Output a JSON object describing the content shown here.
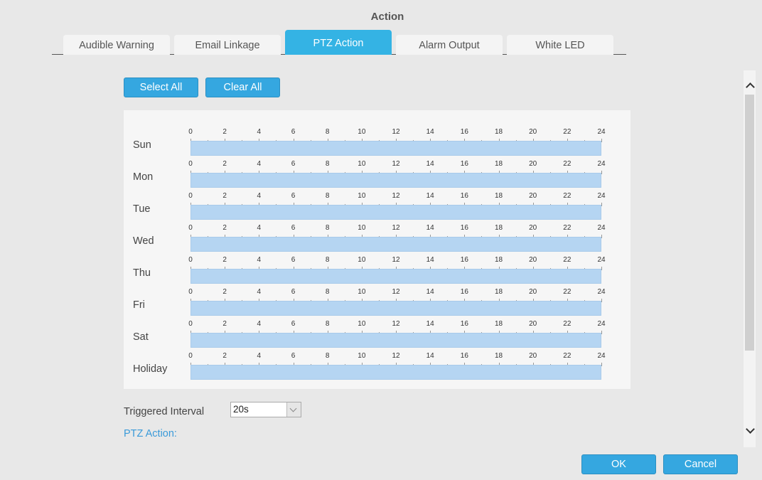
{
  "dialog": {
    "title": "Action"
  },
  "tabs": [
    {
      "label": "Audible Warning",
      "active": false
    },
    {
      "label": "Email Linkage",
      "active": false
    },
    {
      "label": "PTZ Action",
      "active": true
    },
    {
      "label": "Alarm Output",
      "active": false
    },
    {
      "label": "White LED",
      "active": false
    }
  ],
  "toolbar": {
    "select_all_label": "Select All",
    "clear_all_label": "Clear All"
  },
  "schedule": {
    "tick_labels": [
      "0",
      "2",
      "4",
      "6",
      "8",
      "10",
      "12",
      "14",
      "16",
      "18",
      "20",
      "22",
      "24"
    ],
    "hours_total": 24,
    "days": [
      {
        "label": "Sun",
        "selected_start": 0,
        "selected_end": 24
      },
      {
        "label": "Mon",
        "selected_start": 0,
        "selected_end": 24
      },
      {
        "label": "Tue",
        "selected_start": 0,
        "selected_end": 24
      },
      {
        "label": "Wed",
        "selected_start": 0,
        "selected_end": 24
      },
      {
        "label": "Thu",
        "selected_start": 0,
        "selected_end": 24
      },
      {
        "label": "Fri",
        "selected_start": 0,
        "selected_end": 24
      },
      {
        "label": "Sat",
        "selected_start": 0,
        "selected_end": 24
      },
      {
        "label": "Holiday",
        "selected_start": 0,
        "selected_end": 24
      }
    ],
    "bar_color": "#b5d5f2"
  },
  "interval": {
    "label": "Triggered Interval",
    "value": "20s"
  },
  "ptz_action": {
    "label": "PTZ Action:"
  },
  "footer": {
    "ok_label": "OK",
    "cancel_label": "Cancel"
  },
  "colors": {
    "accent": "#35a7e0",
    "link": "#3a9ad9"
  },
  "icons": {
    "scroll_up": "chevron-up-icon",
    "scroll_down": "chevron-down-icon",
    "dropdown": "chevron-down-icon"
  }
}
